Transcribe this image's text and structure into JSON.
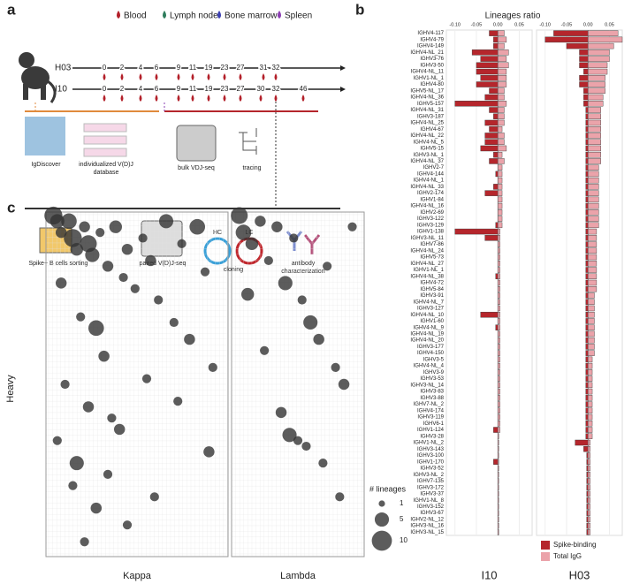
{
  "panel_labels": [
    "a",
    "b",
    "c"
  ],
  "diagram": {
    "tissues": [
      {
        "name": "Blood",
        "color": "#b3202a"
      },
      {
        "name": "Lymph node",
        "color": "#2f7d5d"
      },
      {
        "name": "Bone marrow",
        "color": "#3b3fb2"
      },
      {
        "name": "Spleen",
        "color": "#8c3fb3"
      }
    ],
    "animals": [
      {
        "name": "H03",
        "timepoints": [
          0,
          2,
          4,
          6,
          9,
          11,
          19,
          23,
          27,
          31,
          32
        ]
      },
      {
        "name": "I10",
        "timepoints": [
          0,
          2,
          4,
          6,
          9,
          11,
          19,
          23,
          27,
          30,
          32,
          46
        ]
      }
    ],
    "steps": {
      "igdiscover": "IgDiscover",
      "database": [
        "individualized V(D)J",
        "database"
      ],
      "bulk": "bulk VDJ-seq",
      "tracing": "tracing",
      "sorting": "Spike+ B cells sorting",
      "paired": "paired V(D)J-seq",
      "cloning": "cloning",
      "hc": "HC",
      "lc": "LC",
      "characterization": [
        "antibody",
        "characterization"
      ]
    }
  },
  "chart_data": [
    {
      "type": "bar",
      "orientation": "horizontal",
      "title": "Lineages ratio",
      "categories": [
        "IGHV4-117",
        "IGHV4-79",
        "IGHV4-149",
        "IGHV4-NL_21",
        "IGHV3-76",
        "IGHV3-50",
        "IGHV4-NL_11",
        "IGHV1-NL_1",
        "IGHV4-80",
        "IGHV5-NL_17",
        "IGHV4-NL_36",
        "IGHV5-157",
        "IGHV4-NL_31",
        "IGHV3-187",
        "IGHV4-NL_25",
        "IGHV4-67",
        "IGHV4-NL_22",
        "IGHV4-NL_5",
        "IGHV5-15",
        "IGHV3-NL_1",
        "IGHV4-NL_37",
        "IGHV2-7",
        "IGHV4-144",
        "IGHV4-NL_1",
        "IGHV4-NL_33",
        "IGHV2-174",
        "IGHV1-84",
        "IGHV4-NL_16",
        "IGHV2-69",
        "IGHV3-122",
        "IGHV3-129",
        "IGHV1-138",
        "IGHV3-NL_11",
        "IGHV7-86",
        "IGHV4-NL_24",
        "IGHV5-73",
        "IGHV4-NL_27",
        "IGHV1-NL_1",
        "IGHV4-NL_38",
        "IGHV4-72",
        "IGHV5-84",
        "IGHV3-91",
        "IGHV4-NL_7",
        "IGHV3-127",
        "IGHV4-NL_10",
        "IGHV1-60",
        "IGHV4-NL_9",
        "IGHV4-NL_19",
        "IGHV4-NL_20",
        "IGHV3-177",
        "IGHV4-150",
        "IGHV3-5",
        "IGHV4-NL_4",
        "IGHV3-9",
        "IGHV3-53",
        "IGHV3-NL_14",
        "IGHV3-83",
        "IGHV3-88",
        "IGHV7-NL_2",
        "IGHV4-174",
        "IGHV3-119",
        "IGHV6-1",
        "IGHV1-124",
        "IGHV3-28",
        "IGHV1-NL_2",
        "IGHV3-143",
        "IGHV3-100",
        "IGHV1-170",
        "IGHV3-52",
        "IGHV3-NL_2",
        "IGHV7-135",
        "IGHV3-172",
        "IGHV3-37",
        "IGHV1-NL_8",
        "IGHV3-152",
        "IGHV3-67",
        "IGHV2-NL_12",
        "IGHV3-NL_16",
        "IGHV3-NL_15"
      ],
      "facets": [
        {
          "name": "I10",
          "series": [
            {
              "name": "Spike-binding",
              "color": "#b5262c",
              "values": [
                -0.02,
                -0.01,
                -0.01,
                -0.06,
                -0.04,
                -0.05,
                -0.05,
                -0.04,
                -0.05,
                -0.02,
                -0.03,
                -0.1,
                -0.02,
                -0.01,
                -0.03,
                -0.02,
                -0.03,
                -0.03,
                -0.04,
                -0.01,
                -0.02,
                0,
                -0.005,
                0,
                -0.01,
                -0.03,
                0,
                0,
                0,
                0,
                -0.005,
                -0.1,
                -0.03,
                0,
                0,
                0,
                0,
                0,
                -0.005,
                0,
                0,
                0,
                0,
                0,
                -0.04,
                0,
                -0.005,
                0,
                0,
                0,
                0,
                0,
                0,
                0,
                0,
                0,
                0,
                0,
                0,
                0,
                0,
                0,
                -0.01,
                0,
                0,
                0,
                0,
                -0.01,
                0,
                0,
                0,
                0,
                0,
                0,
                0,
                0,
                0,
                0,
                0
              ]
            },
            {
              "name": "Total IgG",
              "color": "#eba3aa",
              "values": [
                0.015,
                0.02,
                0.015,
                0.025,
                0.02,
                0.025,
                0.02,
                0.02,
                0.02,
                0.015,
                0.015,
                0.02,
                0.015,
                0.015,
                0.015,
                0.01,
                0.015,
                0.015,
                0.02,
                0.01,
                0.015,
                0.01,
                0.01,
                0.01,
                0.01,
                0.01,
                0.01,
                0.01,
                0.01,
                0.01,
                0.01,
                0.005,
                0.005,
                0.005,
                0.005,
                0.005,
                0.005,
                0.005,
                0.005,
                0.005,
                0.005,
                0.005,
                0.005,
                0.005,
                0.005,
                0.005,
                0.005,
                0.005,
                0.005,
                0.005,
                0.005,
                0.005,
                0.005,
                0.005,
                0.005,
                0.005,
                0.005,
                0.005,
                0.005,
                0.005,
                0.005,
                0.005,
                0.005,
                0.002,
                0.002,
                0.002,
                0.002,
                0.002,
                0.002,
                0.002,
                0.002,
                0.002,
                0.002,
                0.002,
                0.002,
                0.002,
                0.002,
                0.002,
                0.002
              ]
            }
          ]
        },
        {
          "name": "H03",
          "series": [
            {
              "name": "Spike-binding",
              "color": "#b5262c",
              "values": [
                -0.08,
                -0.1,
                -0.05,
                -0.02,
                -0.02,
                -0.02,
                -0.01,
                -0.02,
                -0.02,
                -0.01,
                -0.01,
                -0.01,
                -0.005,
                -0.005,
                -0.005,
                -0.005,
                -0.005,
                -0.005,
                -0.005,
                -0.005,
                -0.005,
                -0.005,
                -0.005,
                -0.005,
                -0.005,
                -0.005,
                -0.005,
                -0.005,
                -0.005,
                -0.005,
                -0.005,
                -0.005,
                -0.005,
                -0.005,
                -0.005,
                -0.005,
                -0.005,
                -0.005,
                -0.005,
                -0.005,
                -0.005,
                -0.005,
                -0.005,
                -0.005,
                -0.005,
                -0.005,
                -0.005,
                -0.005,
                -0.005,
                -0.005,
                -0.005,
                -0.005,
                -0.005,
                -0.005,
                -0.005,
                -0.005,
                -0.005,
                -0.005,
                -0.005,
                -0.005,
                -0.005,
                -0.005,
                -0.005,
                -0.005,
                -0.03,
                -0.01,
                -0.003,
                -0.003,
                -0.003,
                -0.003,
                -0.003,
                -0.003,
                -0.003,
                -0.003,
                -0.003,
                -0.003,
                -0.003,
                -0.003,
                -0.003
              ]
            },
            {
              "name": "Total IgG",
              "color": "#eba3aa",
              "values": [
                0.07,
                0.08,
                0.06,
                0.05,
                0.05,
                0.045,
                0.045,
                0.04,
                0.04,
                0.04,
                0.035,
                0.035,
                0.03,
                0.03,
                0.03,
                0.03,
                0.03,
                0.03,
                0.03,
                0.03,
                0.03,
                0.025,
                0.025,
                0.025,
                0.025,
                0.025,
                0.025,
                0.025,
                0.025,
                0.025,
                0.025,
                0.02,
                0.02,
                0.02,
                0.02,
                0.02,
                0.02,
                0.02,
                0.02,
                0.02,
                0.02,
                0.015,
                0.015,
                0.015,
                0.015,
                0.015,
                0.015,
                0.015,
                0.015,
                0.015,
                0.015,
                0.01,
                0.01,
                0.01,
                0.01,
                0.01,
                0.01,
                0.01,
                0.01,
                0.01,
                0.01,
                0.01,
                0.01,
                0.01,
                0.005,
                0.005,
                0.005,
                0.005,
                0.005,
                0.005,
                0.005,
                0.005,
                0.005,
                0.005,
                0.005,
                0.005,
                0.005,
                0.005,
                0.005
              ]
            }
          ]
        }
      ],
      "xlim": [
        -0.12,
        0.08
      ],
      "xticks": [
        {
          "value": -0.1,
          "label": "-0.10"
        },
        {
          "value": -0.05,
          "label": "-0.05"
        },
        {
          "value": 0,
          "label": "0.00"
        },
        {
          "value": 0.05,
          "label": "0.05"
        }
      ],
      "legend": "bottom-right"
    },
    {
      "type": "scatter",
      "y_label": "Heavy",
      "ylim": [
        0,
        60
      ],
      "color": "#333333",
      "grid": true,
      "facets": [
        {
          "name": "Kappa",
          "xlim": [
            0,
            45
          ],
          "x": [
            1,
            2,
            3,
            5,
            6,
            7,
            9,
            10,
            11,
            13,
            15,
            17,
            19,
            20,
            22,
            24,
            26,
            28,
            30,
            32,
            34,
            36,
            38,
            40,
            42,
            3,
            8,
            12,
            14,
            4,
            10,
            16,
            2,
            7,
            18,
            25,
            33,
            41,
            6,
            12,
            20,
            9,
            15,
            27
          ],
          "y": [
            0,
            1,
            3,
            1,
            4,
            6,
            2,
            5,
            7,
            3,
            9,
            2,
            11,
            6,
            13,
            4,
            8,
            15,
            1,
            19,
            5,
            22,
            2,
            10,
            27,
            12,
            18,
            20,
            25,
            30,
            34,
            36,
            40,
            44,
            38,
            29,
            33,
            42,
            48,
            52,
            55,
            58,
            46,
            50
          ],
          "sizes": [
            8,
            5,
            3,
            6,
            8,
            4,
            3,
            7,
            5,
            2,
            3,
            4,
            2,
            3,
            2,
            2,
            3,
            2,
            5,
            2,
            2,
            3,
            6,
            2,
            2,
            3,
            2,
            6,
            3,
            2,
            3,
            2,
            2,
            5,
            3,
            2,
            2,
            3,
            2,
            3,
            2,
            2,
            2,
            2
          ]
        },
        {
          "name": "Lambda",
          "xlim": [
            0,
            30
          ],
          "x": [
            1,
            2,
            4,
            6,
            8,
            10,
            12,
            14,
            16,
            18,
            20,
            22,
            24,
            26,
            28,
            3,
            7,
            11,
            15,
            21,
            25,
            13,
            17
          ],
          "y": [
            0,
            3,
            5,
            1,
            8,
            2,
            12,
            4,
            15,
            19,
            22,
            9,
            27,
            30,
            2,
            14,
            24,
            35,
            40,
            44,
            50,
            39,
            41
          ],
          "sizes": [
            7,
            6,
            4,
            3,
            2,
            3,
            5,
            2,
            2,
            5,
            3,
            2,
            2,
            3,
            2,
            4,
            2,
            3,
            2,
            2,
            2,
            5,
            2
          ]
        }
      ],
      "size_legend": {
        "title": "# lineages",
        "values": [
          1,
          5,
          10
        ]
      }
    }
  ]
}
